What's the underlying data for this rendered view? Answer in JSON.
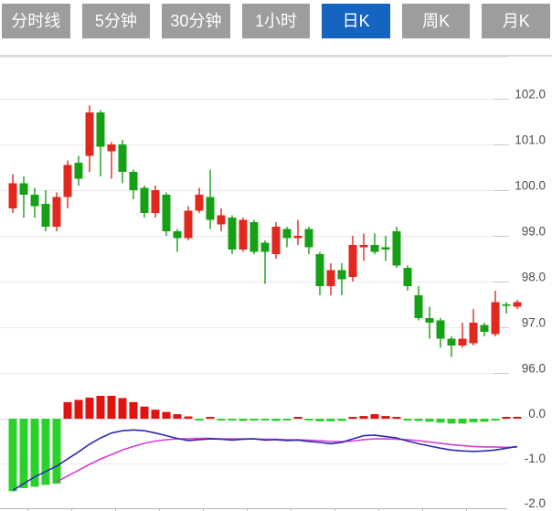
{
  "tabs": {
    "active_index": 4,
    "items": [
      {
        "label": "分时线"
      },
      {
        "label": "5分钟"
      },
      {
        "label": "30分钟"
      },
      {
        "label": "1小时"
      },
      {
        "label": "日K"
      },
      {
        "label": "周K"
      },
      {
        "label": "月K"
      }
    ]
  },
  "colors": {
    "tab_bg": "#9d9d9d",
    "tab_active": "#1565c0",
    "tab_text": "#ffffff",
    "candle_up": "#e0281e",
    "candle_down": "#16a016",
    "hist_up": "#e01212",
    "hist_down": "#2bd12b",
    "dif_line": "#2b2bb2",
    "dea_line": "#d23ed2",
    "grid": "#eaeaea",
    "macd_zero_line": "#e3d5d5",
    "axis_line": "#b5b5b5",
    "axis_text": "#4a4a4a"
  },
  "chart_data": {
    "type": "candlestick",
    "period_selected": "日K",
    "price_axis": {
      "ticks": [
        102.0,
        101.0,
        100.0,
        99.0,
        98.0,
        97.0,
        96.0
      ],
      "labels": [
        "102.0",
        "101.0",
        "100.0",
        "99.0",
        "98.0",
        "97.0",
        "96.0"
      ],
      "range": [
        95.8,
        102.9
      ],
      "position": "right",
      "grid": true
    },
    "candles_ohlc_legend": [
      "open",
      "high",
      "low",
      "close"
    ],
    "candles": [
      [
        99.6,
        100.35,
        99.5,
        100.15
      ],
      [
        100.15,
        100.3,
        99.4,
        99.9
      ],
      [
        99.9,
        100.05,
        99.4,
        99.65
      ],
      [
        99.7,
        100.0,
        99.1,
        99.2
      ],
      [
        99.2,
        99.95,
        99.1,
        99.85
      ],
      [
        99.85,
        100.65,
        99.6,
        100.55
      ],
      [
        100.6,
        100.75,
        100.1,
        100.25
      ],
      [
        100.75,
        101.85,
        100.4,
        101.7
      ],
      [
        101.7,
        101.75,
        100.3,
        100.95
      ],
      [
        100.85,
        101.05,
        100.25,
        101.0
      ],
      [
        101.0,
        101.1,
        100.15,
        100.4
      ],
      [
        100.4,
        100.45,
        99.8,
        100.0
      ],
      [
        100.05,
        100.1,
        99.4,
        99.5
      ],
      [
        99.5,
        100.1,
        99.4,
        100.0
      ],
      [
        99.9,
        99.95,
        99.0,
        99.1
      ],
      [
        99.1,
        99.15,
        98.65,
        98.95
      ],
      [
        98.95,
        99.65,
        98.9,
        99.55
      ],
      [
        99.55,
        100.05,
        99.5,
        99.9
      ],
      [
        99.85,
        100.45,
        99.15,
        99.35
      ],
      [
        99.25,
        99.6,
        99.1,
        99.45
      ],
      [
        99.4,
        99.45,
        98.6,
        98.7
      ],
      [
        98.7,
        99.4,
        98.65,
        99.35
      ],
      [
        99.3,
        99.35,
        98.6,
        98.65
      ],
      [
        98.85,
        98.9,
        97.95,
        98.65
      ],
      [
        98.6,
        99.3,
        98.5,
        99.2
      ],
      [
        99.15,
        99.2,
        98.75,
        98.95
      ],
      [
        98.95,
        99.35,
        98.8,
        99.0
      ],
      [
        99.15,
        99.2,
        98.6,
        98.75
      ],
      [
        98.6,
        98.65,
        97.7,
        97.9
      ],
      [
        97.9,
        98.4,
        97.7,
        98.25
      ],
      [
        98.25,
        98.4,
        97.7,
        98.05
      ],
      [
        98.1,
        99.0,
        98.0,
        98.8
      ],
      [
        98.75,
        99.05,
        98.45,
        98.8
      ],
      [
        98.8,
        99.05,
        98.6,
        98.65
      ],
      [
        98.75,
        99.0,
        98.45,
        98.7
      ],
      [
        99.1,
        99.2,
        98.3,
        98.35
      ],
      [
        98.3,
        98.35,
        97.8,
        97.9
      ],
      [
        97.7,
        97.9,
        97.15,
        97.2
      ],
      [
        97.2,
        97.45,
        96.75,
        97.1
      ],
      [
        97.15,
        97.2,
        96.55,
        96.75
      ],
      [
        96.75,
        96.8,
        96.35,
        96.6
      ],
      [
        96.6,
        97.1,
        96.55,
        96.75
      ],
      [
        96.65,
        97.4,
        96.6,
        97.1
      ],
      [
        97.05,
        97.1,
        96.8,
        96.9
      ],
      [
        96.85,
        97.8,
        96.8,
        97.55
      ],
      [
        97.5,
        97.55,
        97.3,
        97.48
      ],
      [
        97.45,
        97.6,
        97.4,
        97.55
      ]
    ],
    "macd": {
      "axis_labels": [
        "0.0",
        "-1.0",
        "-2.0"
      ],
      "axis_ticks": [
        0.0,
        -1.0,
        -2.0
      ],
      "range": [
        -2.0,
        0.55
      ],
      "hist": [
        -1.62,
        -1.55,
        -1.52,
        -1.48,
        -1.45,
        0.37,
        0.42,
        0.47,
        0.51,
        0.51,
        0.46,
        0.37,
        0.27,
        0.2,
        0.15,
        0.1,
        0.05,
        -0.03,
        0.02,
        -0.02,
        -0.04,
        -0.05,
        -0.04,
        -0.04,
        -0.05,
        -0.03,
        0.02,
        -0.03,
        -0.06,
        -0.06,
        -0.05,
        0.04,
        0.06,
        0.1,
        0.06,
        0.02,
        -0.02,
        -0.05,
        -0.07,
        -0.09,
        -0.11,
        -0.11,
        -0.08,
        -0.07,
        -0.03,
        0.04,
        0.03
      ],
      "dif": [
        -1.6,
        -1.45,
        -1.3,
        -1.18,
        -1.06,
        -0.9,
        -0.74,
        -0.57,
        -0.43,
        -0.32,
        -0.27,
        -0.25,
        -0.27,
        -0.32,
        -0.38,
        -0.44,
        -0.49,
        -0.47,
        -0.45,
        -0.46,
        -0.48,
        -0.46,
        -0.45,
        -0.48,
        -0.47,
        -0.49,
        -0.48,
        -0.51,
        -0.53,
        -0.56,
        -0.53,
        -0.45,
        -0.38,
        -0.37,
        -0.4,
        -0.43,
        -0.5,
        -0.56,
        -0.61,
        -0.66,
        -0.7,
        -0.72,
        -0.73,
        -0.72,
        -0.7,
        -0.66,
        -0.62
      ],
      "dea": [
        null,
        null,
        null,
        null,
        -1.41,
        -1.28,
        -1.15,
        -1.02,
        -0.9,
        -0.8,
        -0.7,
        -0.62,
        -0.55,
        -0.5,
        -0.47,
        -0.45,
        -0.45,
        -0.44,
        -0.44,
        -0.45,
        -0.45,
        -0.45,
        -0.45,
        -0.46,
        -0.46,
        -0.47,
        -0.47,
        -0.48,
        -0.49,
        -0.51,
        -0.51,
        -0.5,
        -0.47,
        -0.45,
        -0.45,
        -0.46,
        -0.47,
        -0.49,
        -0.52,
        -0.55,
        -0.58,
        -0.6,
        -0.62,
        -0.63,
        -0.63,
        -0.64,
        -0.63
      ]
    }
  }
}
